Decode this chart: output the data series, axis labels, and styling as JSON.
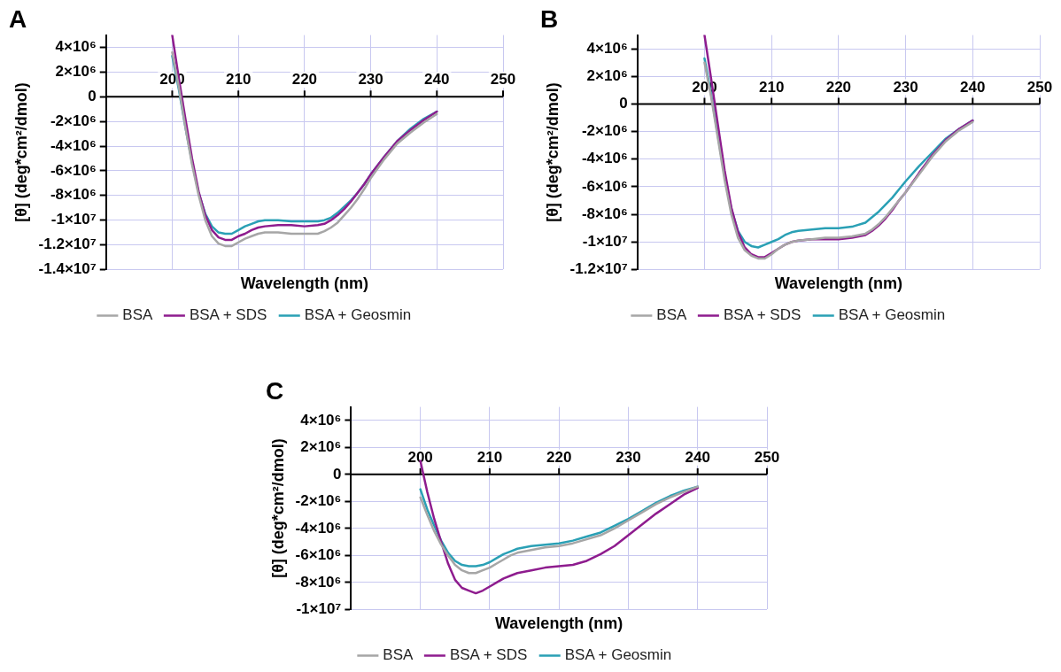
{
  "chart_data": [
    {
      "type": "line",
      "title": "A",
      "xlabel": "Wavelength (nm)",
      "ylabel": "[θ] (deg*cm²/dmol)",
      "legend": "bottom",
      "grid": true,
      "marker": "none",
      "line_style": "solid",
      "xlim": [
        190,
        250
      ],
      "xticks": [
        200,
        210,
        220,
        230,
        240,
        250
      ],
      "ylim": [
        -14000000.0,
        5000000.0
      ],
      "yticks": [
        {
          "value": 4000000.0,
          "label": "4×10⁶"
        },
        {
          "value": 2000000.0,
          "label": "2×10⁶"
        },
        {
          "value": 0,
          "label": "0"
        },
        {
          "value": -2000000.0,
          "label": "-2×10⁶"
        },
        {
          "value": -4000000.0,
          "label": "-4×10⁶"
        },
        {
          "value": -6000000.0,
          "label": "-6×10⁶"
        },
        {
          "value": -8000000.0,
          "label": "-8×10⁶"
        },
        {
          "value": -10000000.0,
          "label": "-1×10⁷"
        },
        {
          "value": -12000000.0,
          "label": "-1.2×10⁷"
        },
        {
          "value": -14000000.0,
          "label": "-1.4×10⁷"
        }
      ],
      "x": [
        200,
        201,
        202,
        203,
        204,
        205,
        206,
        207,
        208,
        209,
        210,
        211,
        212,
        213,
        214,
        216,
        218,
        220,
        222,
        223,
        224,
        225,
        226,
        227,
        228,
        229,
        230,
        232,
        234,
        236,
        238,
        240
      ],
      "series": [
        {
          "name": "BSA",
          "color": "#a6a6a6",
          "values": [
            3600000.0,
            800000.0,
            -2500000.0,
            -5500000.0,
            -8000000.0,
            -10000000.0,
            -11300000.0,
            -11900000.0,
            -12100000.0,
            -12100000.0,
            -11800000.0,
            -11500000.0,
            -11300000.0,
            -11100000.0,
            -11000000.0,
            -11000000.0,
            -11100000.0,
            -11100000.0,
            -11100000.0,
            -10900000.0,
            -10600000.0,
            -10200000.0,
            -9600000.0,
            -9000000.0,
            -8300000.0,
            -7500000.0,
            -6600000.0,
            -5100000.0,
            -3800000.0,
            -2900000.0,
            -2100000.0,
            -1400000.0
          ]
        },
        {
          "name": "BSA + SDS",
          "color": "#8e1c8e",
          "values": [
            5000000.0,
            1500000.0,
            -1800000.0,
            -5000000.0,
            -7700000.0,
            -9600000.0,
            -10800000.0,
            -11400000.0,
            -11600000.0,
            -11600000.0,
            -11300000.0,
            -11100000.0,
            -10800000.0,
            -10600000.0,
            -10500000.0,
            -10400000.0,
            -10400000.0,
            -10500000.0,
            -10400000.0,
            -10300000.0,
            -10000000.0,
            -9600000.0,
            -9100000.0,
            -8500000.0,
            -7800000.0,
            -7100000.0,
            -6300000.0,
            -4900000.0,
            -3600000.0,
            -2700000.0,
            -1900000.0,
            -1200000.0
          ]
        },
        {
          "name": "BSA + Geosmin",
          "color": "#2aa0b5",
          "values": [
            3300000.0,
            600000.0,
            -2500000.0,
            -5300000.0,
            -7800000.0,
            -9500000.0,
            -10500000.0,
            -11000000.0,
            -11100000.0,
            -11100000.0,
            -10800000.0,
            -10500000.0,
            -10300000.0,
            -10100000.0,
            -10000000.0,
            -10000000.0,
            -10100000.0,
            -10100000.0,
            -10100000.0,
            -10000000.0,
            -9800000.0,
            -9400000.0,
            -8900000.0,
            -8400000.0,
            -7800000.0,
            -7100000.0,
            -6300000.0,
            -4900000.0,
            -3600000.0,
            -2600000.0,
            -1800000.0,
            -1200000.0
          ]
        }
      ]
    },
    {
      "type": "line",
      "title": "B",
      "xlabel": "Wavelength (nm)",
      "ylabel": "[θ] (deg*cm²/dmol)",
      "legend": "bottom",
      "grid": true,
      "marker": "none",
      "line_style": "solid",
      "xlim": [
        190,
        250
      ],
      "xticks": [
        200,
        210,
        220,
        230,
        240,
        250
      ],
      "ylim": [
        -12000000.0,
        5000000.0
      ],
      "yticks": [
        {
          "value": 4000000.0,
          "label": "4×10⁶"
        },
        {
          "value": 2000000.0,
          "label": "2×10⁶"
        },
        {
          "value": 0,
          "label": "0"
        },
        {
          "value": -2000000.0,
          "label": "-2×10⁶"
        },
        {
          "value": -4000000.0,
          "label": "-4×10⁶"
        },
        {
          "value": -6000000.0,
          "label": "-6×10⁶"
        },
        {
          "value": -8000000.0,
          "label": "-8×10⁶"
        },
        {
          "value": -10000000.0,
          "label": "-1×10⁷"
        },
        {
          "value": -12000000.0,
          "label": "-1.2×10⁷"
        }
      ],
      "x": [
        200,
        201,
        202,
        203,
        204,
        205,
        206,
        207,
        208,
        209,
        210,
        211,
        212,
        213,
        214,
        216,
        218,
        220,
        222,
        224,
        225,
        226,
        227,
        228,
        229,
        230,
        232,
        234,
        236,
        238,
        240
      ],
      "series": [
        {
          "name": "BSA",
          "color": "#a6a6a6",
          "values": [
            3000000.0,
            500000.0,
            -2500000.0,
            -5500000.0,
            -8000000.0,
            -9700000.0,
            -10600000.0,
            -11000000.0,
            -11200000.0,
            -11200000.0,
            -10900000.0,
            -10500000.0,
            -10200000.0,
            -10000000.0,
            -9900000.0,
            -9800000.0,
            -9700000.0,
            -9700000.0,
            -9600000.0,
            -9400000.0,
            -9100000.0,
            -8700000.0,
            -8200000.0,
            -7600000.0,
            -7000000.0,
            -6400000.0,
            -5100000.0,
            -3800000.0,
            -2700000.0,
            -1900000.0,
            -1300000.0
          ]
        },
        {
          "name": "BSA + SDS",
          "color": "#8e1c8e",
          "values": [
            5000000.0,
            1800000.0,
            -1500000.0,
            -4800000.0,
            -7500000.0,
            -9300000.0,
            -10400000.0,
            -10900000.0,
            -11100000.0,
            -11100000.0,
            -10800000.0,
            -10500000.0,
            -10200000.0,
            -10000000.0,
            -9900000.0,
            -9800000.0,
            -9800000.0,
            -9800000.0,
            -9700000.0,
            -9500000.0,
            -9200000.0,
            -8800000.0,
            -8300000.0,
            -7700000.0,
            -7000000.0,
            -6400000.0,
            -5000000.0,
            -3700000.0,
            -2600000.0,
            -1800000.0,
            -1200000.0
          ]
        },
        {
          "name": "BSA + Geosmin",
          "color": "#2aa0b5",
          "values": [
            3300000.0,
            700000.0,
            -2300000.0,
            -5200000.0,
            -7600000.0,
            -9200000.0,
            -10000000.0,
            -10300000.0,
            -10400000.0,
            -10200000.0,
            -10000000.0,
            -9800000.0,
            -9500000.0,
            -9300000.0,
            -9200000.0,
            -9100000.0,
            -9000000.0,
            -9000000.0,
            -8900000.0,
            -8600000.0,
            -8200000.0,
            -7800000.0,
            -7300000.0,
            -6800000.0,
            -6200000.0,
            -5600000.0,
            -4500000.0,
            -3500000.0,
            -2500000.0,
            -1800000.0,
            -1200000.0
          ]
        }
      ]
    },
    {
      "type": "line",
      "title": "C",
      "xlabel": "Wavelength (nm)",
      "ylabel": "[θ] (deg*cm²/dmol)",
      "legend": "bottom",
      "grid": true,
      "marker": "none",
      "line_style": "solid",
      "xlim": [
        190,
        250
      ],
      "xticks": [
        200,
        210,
        220,
        230,
        240,
        250
      ],
      "ylim": [
        -10000000.0,
        5000000.0
      ],
      "yticks": [
        {
          "value": 4000000.0,
          "label": "4×10⁶"
        },
        {
          "value": 2000000.0,
          "label": "2×10⁶"
        },
        {
          "value": 0,
          "label": "0"
        },
        {
          "value": -2000000.0,
          "label": "-2×10⁶"
        },
        {
          "value": -4000000.0,
          "label": "-4×10⁶"
        },
        {
          "value": -6000000.0,
          "label": "-6×10⁶"
        },
        {
          "value": -8000000.0,
          "label": "-8×10⁶"
        },
        {
          "value": -10000000.0,
          "label": "-1×10⁷"
        }
      ],
      "x": [
        200,
        201,
        202,
        203,
        204,
        205,
        206,
        207,
        208,
        209,
        210,
        211,
        212,
        213,
        214,
        216,
        218,
        220,
        222,
        224,
        226,
        228,
        230,
        232,
        234,
        236,
        238,
        240
      ],
      "series": [
        {
          "name": "BSA",
          "color": "#a6a6a6",
          "values": [
            -1700000.0,
            -3000000.0,
            -4200000.0,
            -5200000.0,
            -6000000.0,
            -6700000.0,
            -7100000.0,
            -7300000.0,
            -7300000.0,
            -7100000.0,
            -6900000.0,
            -6600000.0,
            -6300000.0,
            -6000000.0,
            -5800000.0,
            -5600000.0,
            -5400000.0,
            -5300000.0,
            -5100000.0,
            -4800000.0,
            -4500000.0,
            -4000000.0,
            -3400000.0,
            -2800000.0,
            -2200000.0,
            -1700000.0,
            -1300000.0,
            -900000.0
          ]
        },
        {
          "name": "BSA + SDS",
          "color": "#8e1c8e",
          "values": [
            1000000.0,
            -1300000.0,
            -3300000.0,
            -5000000.0,
            -6600000.0,
            -7800000.0,
            -8400000.0,
            -8600000.0,
            -8800000.0,
            -8600000.0,
            -8300000.0,
            -8000000.0,
            -7700000.0,
            -7500000.0,
            -7300000.0,
            -7100000.0,
            -6900000.0,
            -6800000.0,
            -6700000.0,
            -6400000.0,
            -5900000.0,
            -5300000.0,
            -4500000.0,
            -3700000.0,
            -2900000.0,
            -2200000.0,
            -1500000.0,
            -1000000.0
          ]
        },
        {
          "name": "BSA + Geosmin",
          "color": "#2aa0b5",
          "values": [
            -1100000.0,
            -2600000.0,
            -3800000.0,
            -4900000.0,
            -5800000.0,
            -6400000.0,
            -6700000.0,
            -6800000.0,
            -6800000.0,
            -6700000.0,
            -6500000.0,
            -6200000.0,
            -5900000.0,
            -5700000.0,
            -5500000.0,
            -5300000.0,
            -5200000.0,
            -5100000.0,
            -4900000.0,
            -4600000.0,
            -4300000.0,
            -3800000.0,
            -3300000.0,
            -2700000.0,
            -2100000.0,
            -1600000.0,
            -1200000.0,
            -900000.0
          ]
        }
      ]
    }
  ]
}
